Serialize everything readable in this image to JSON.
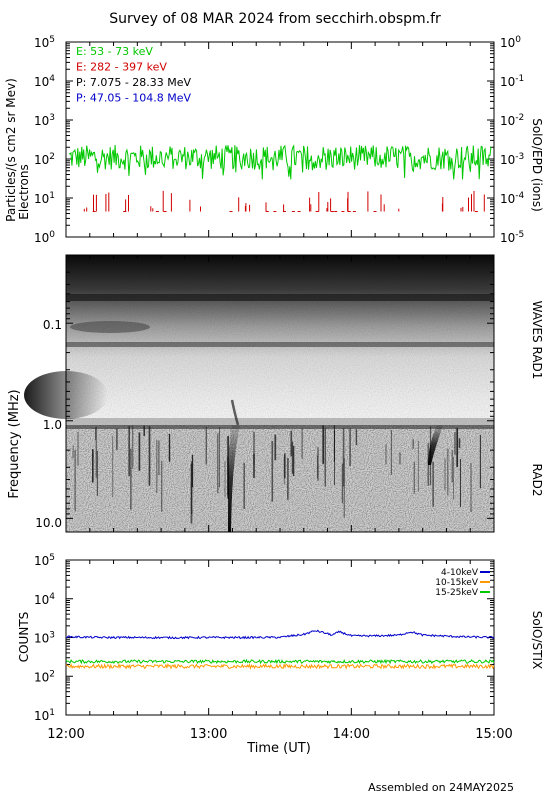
{
  "title": "Survey of 08 MAR 2024 from secchirh.obspm.fr",
  "footer": "Assembled on 24MAY2025",
  "chart_data": [
    {
      "type": "line",
      "panel": "particles",
      "ylabel_left_line1": "Particles/(s cm2 sr Mev)",
      "ylabel_left_line2": "Electrons",
      "ylabel_right": "SolO/EPD (ions)",
      "yscale": "log",
      "ylim": [
        1,
        100000
      ],
      "yticks_left": [
        {
          "base": "10",
          "exp": "0"
        },
        {
          "base": "10",
          "exp": "1"
        },
        {
          "base": "10",
          "exp": "2"
        },
        {
          "base": "10",
          "exp": "3"
        },
        {
          "base": "10",
          "exp": "4"
        },
        {
          "base": "10",
          "exp": "5"
        }
      ],
      "yticks_right": [
        {
          "base": "10",
          "exp": "-5"
        },
        {
          "base": "10",
          "exp": "-4"
        },
        {
          "base": "10",
          "exp": "-3"
        },
        {
          "base": "10",
          "exp": "-2"
        },
        {
          "base": "10",
          "exp": "-1"
        },
        {
          "base": "10",
          "exp": "0"
        }
      ],
      "legend": [
        {
          "label": "E: 53 - 73 keV",
          "color": "#00c800"
        },
        {
          "label": "E: 282 - 397 keV",
          "color": "#d00000"
        },
        {
          "label": "P: 7.075 - 28.33 MeV",
          "color": "#000000"
        },
        {
          "label": "P: 47.05 - 104.8 MeV",
          "color": "#0000c8"
        }
      ],
      "series": [
        {
          "name": "E: 53 - 73 keV",
          "color": "#00c800",
          "typical": 110,
          "range": [
            30,
            330
          ]
        },
        {
          "name": "E: 282 - 397 keV",
          "color": "#d00000",
          "typical": 5,
          "range": [
            4,
            14
          ]
        }
      ]
    },
    {
      "type": "heatmap",
      "panel": "radio",
      "ylabel": "Frequency (MHz)",
      "yscale": "log",
      "ylim_mhz": [
        0.02,
        13.8
      ],
      "yticks": [
        "0.1",
        "1.0",
        "10.0"
      ],
      "band_labels": [
        "WAVES RAD1",
        "RAD2"
      ],
      "features": [
        {
          "kind": "type III burst",
          "start_time": "13:11",
          "freq_top_mhz": 0.8
        },
        {
          "kind": "type III burst",
          "start_time": "14:35",
          "freq_top_mhz": 1.1
        }
      ]
    },
    {
      "type": "line",
      "panel": "stix",
      "ylabel": "COUNTS",
      "ylabel_right": "SolO/STIX",
      "yscale": "log",
      "ylim": [
        10,
        100000
      ],
      "yticks": [
        {
          "base": "10",
          "exp": "1"
        },
        {
          "base": "10",
          "exp": "2"
        },
        {
          "base": "10",
          "exp": "3"
        },
        {
          "base": "10",
          "exp": "4"
        },
        {
          "base": "10",
          "exp": "5"
        }
      ],
      "legend": [
        {
          "label": "4-10keV",
          "color": "#0000c8"
        },
        {
          "label": "10-15keV",
          "color": "#ff9900"
        },
        {
          "label": "15-25keV",
          "color": "#00c800"
        }
      ],
      "series": [
        {
          "name": "4-10keV",
          "color": "#0000c8",
          "x": [
            "12:00",
            "12:15",
            "12:30",
            "12:45",
            "13:00",
            "13:15",
            "13:30",
            "13:40",
            "13:45",
            "13:52",
            "13:55",
            "14:00",
            "14:10",
            "14:20",
            "14:25",
            "14:30",
            "14:45",
            "15:00"
          ],
          "y": [
            1050,
            1000,
            1000,
            990,
            1000,
            1000,
            1010,
            1200,
            1500,
            1150,
            1400,
            1100,
            1100,
            1150,
            1400,
            1150,
            1050,
            1000
          ]
        },
        {
          "name": "15-25keV",
          "color": "#00c800",
          "level": 240
        },
        {
          "name": "10-15keV",
          "color": "#ff9900",
          "level": 180
        }
      ],
      "xlabel": "Time (UT)",
      "xticks": [
        "12:00",
        "13:00",
        "14:00",
        "15:00"
      ],
      "xlim": [
        "12:00",
        "15:00"
      ]
    }
  ]
}
